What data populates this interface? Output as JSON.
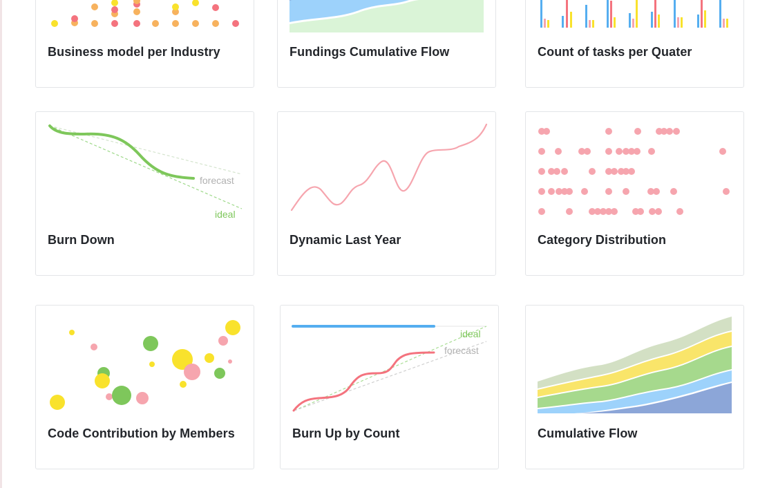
{
  "cards": [
    {
      "title": "Business model per Industry",
      "chart_type": "scatter"
    },
    {
      "title": "Fundings Cumulative Flow",
      "chart_type": "area"
    },
    {
      "title": "Count of tasks per Quater",
      "chart_type": "bar"
    },
    {
      "title": "Burn Down",
      "chart_type": "line",
      "labels": {
        "forecast": "forecast",
        "ideal": "ideal"
      }
    },
    {
      "title": "Dynamic Last Year",
      "chart_type": "line"
    },
    {
      "title": "Category Distribution",
      "chart_type": "scatter"
    },
    {
      "title": "Code Contribution by Members",
      "chart_type": "scatter"
    },
    {
      "title": "Burn Up by Count",
      "chart_type": "line",
      "labels": {
        "ideal": "ideal",
        "forecast": "forecast"
      }
    },
    {
      "title": "Cumulative Flow",
      "chart_type": "area"
    }
  ],
  "colors": {
    "pink": "#f6a5ae",
    "red": "#f4737e",
    "yellow": "#f9e22c",
    "orange": "#f7b25e",
    "green": "#7ec75b",
    "blue": "#55aef0",
    "light_blue": "#9dd2fb",
    "slate_blue": "#8ca6d8",
    "mint": "#daf4d7",
    "sage": "#d3e0c4",
    "grey": "#bcbcbc"
  }
}
